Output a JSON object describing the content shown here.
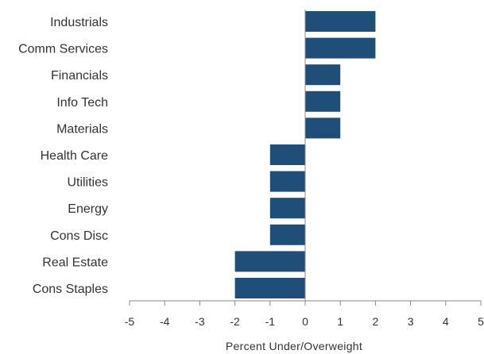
{
  "chart_data": {
    "type": "bar",
    "orientation": "horizontal",
    "categories": [
      "Industrials",
      "Comm Services",
      "Financials",
      "Info Tech",
      "Materials",
      "Health Care",
      "Utilities",
      "Energy",
      "Cons Disc",
      "Real Estate",
      "Cons Staples"
    ],
    "values": [
      2,
      2,
      1,
      1,
      1,
      -1,
      -1,
      -1,
      -1,
      -2,
      -2
    ],
    "xlabel": "Percent Under/Overweight",
    "ylabel": "",
    "xlim": [
      -5,
      5
    ],
    "xticks": [
      -5,
      -4,
      -3,
      -2,
      -1,
      0,
      1,
      2,
      3,
      4,
      5
    ],
    "grid": false,
    "legend": "none",
    "bar_color": "#1f4e79",
    "text_color": "#333333"
  }
}
